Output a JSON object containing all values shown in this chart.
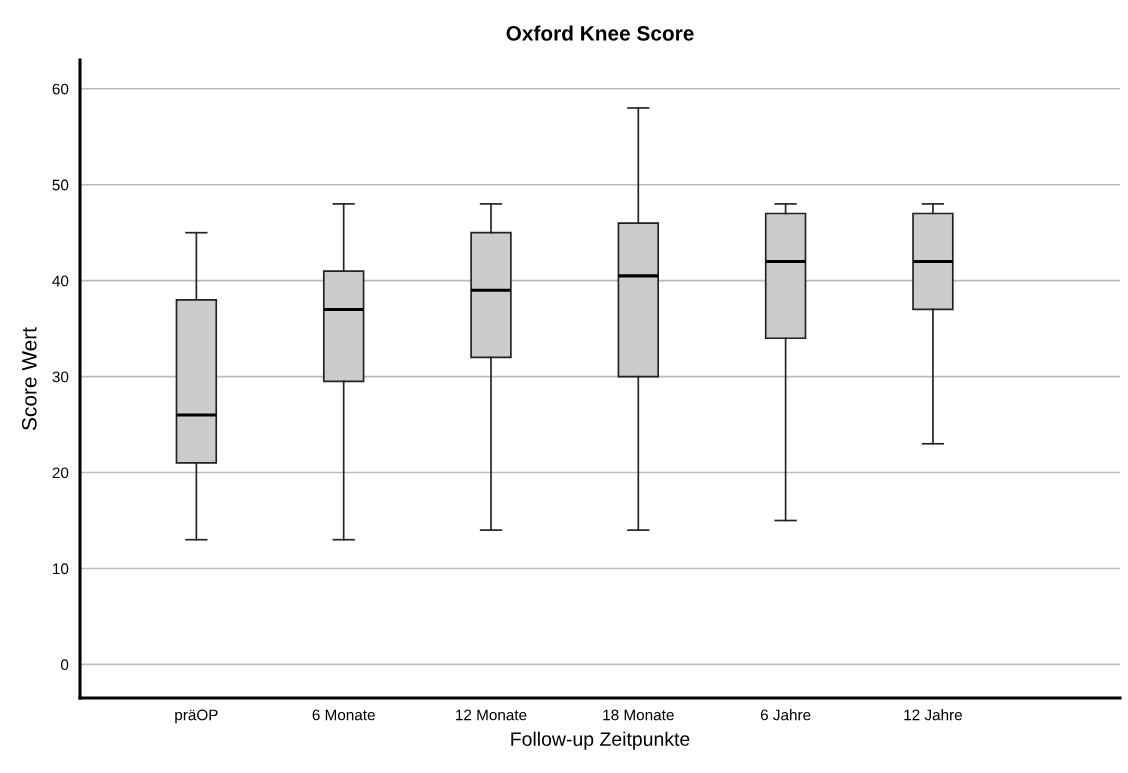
{
  "chart_data": {
    "type": "box",
    "title": "Oxford Knee Score",
    "xlabel": "Follow-up Zeitpunkte",
    "ylabel": "Score Wert",
    "categories": [
      "präOP",
      "6 Monate",
      "12 Monate",
      "18 Monate",
      "6 Jahre",
      "12 Jahre"
    ],
    "color": "#cccccc",
    "grid": "y",
    "ylim": [
      -3.5,
      63
    ],
    "yticks": [
      0,
      10,
      20,
      30,
      40,
      50,
      60
    ],
    "boxes": [
      {
        "low": 13,
        "q1": 21,
        "median": 26,
        "q3": 38,
        "high": 45
      },
      {
        "low": 13,
        "q1": 29.5,
        "median": 37,
        "q3": 41,
        "high": 48
      },
      {
        "low": 14,
        "q1": 32,
        "median": 39,
        "q3": 45,
        "high": 48
      },
      {
        "low": 14,
        "q1": 30,
        "median": 40.5,
        "q3": 46,
        "high": 58
      },
      {
        "low": 15,
        "q1": 34,
        "median": 42,
        "q3": 47,
        "high": 48
      },
      {
        "low": 23,
        "q1": 37,
        "median": 42,
        "q3": 47,
        "high": 48
      }
    ]
  }
}
